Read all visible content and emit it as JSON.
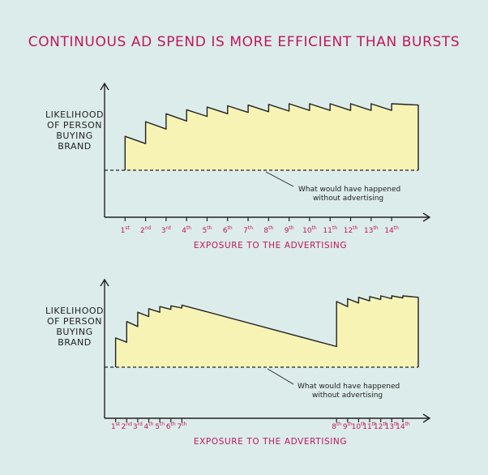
{
  "title": "CONTINUOUS AD SPEND IS MORE EFFICIENT THAN BURSTS",
  "colors": {
    "background": "#dcecea",
    "accent": "#c0175d",
    "fill": "#f6f3b5",
    "line": "#222222"
  },
  "chart_data": [
    {
      "type": "area",
      "ylabel": [
        "LIKELIHOOD",
        "OF PERSON",
        "BUYING",
        "BRAND"
      ],
      "xlabel": "EXPOSURE TO THE ADVERTISING",
      "baseline_note": [
        "What would have happened",
        "without advertising"
      ],
      "exposures": [
        {
          "num": "1",
          "suffix": "st"
        },
        {
          "num": "2",
          "suffix": "nd"
        },
        {
          "num": "3",
          "suffix": "rd"
        },
        {
          "num": "4",
          "suffix": "th"
        },
        {
          "num": "5",
          "suffix": "th"
        },
        {
          "num": "6",
          "suffix": "th"
        },
        {
          "num": "7",
          "suffix": "th"
        },
        {
          "num": "8",
          "suffix": "th"
        },
        {
          "num": "9",
          "suffix": "th"
        },
        {
          "num": "10",
          "suffix": "th"
        },
        {
          "num": "11",
          "suffix": "th"
        },
        {
          "num": "12",
          "suffix": "th"
        },
        {
          "num": "13",
          "suffix": "th"
        },
        {
          "num": "14",
          "suffix": "th"
        }
      ],
      "exposure_times": [
        1,
        2,
        3,
        4,
        5,
        6,
        7,
        8,
        9,
        10,
        11,
        12,
        13,
        14
      ],
      "peak_levels": [
        0.51,
        0.73,
        0.85,
        0.91,
        0.95,
        0.97,
        0.98,
        0.99,
        1.0,
        1.0,
        1.0,
        1.0,
        1.0,
        1.0
      ],
      "trough_levels": [
        0.4,
        0.62,
        0.74,
        0.81,
        0.85,
        0.87,
        0.88,
        0.89,
        0.9,
        0.9,
        0.9,
        0.9,
        0.9,
        0.9
      ],
      "end_level": 0.98,
      "x_range": [
        0,
        15.3
      ]
    },
    {
      "type": "area",
      "ylabel": [
        "LIKELIHOOD",
        "OF PERSON",
        "BUYING",
        "BRAND"
      ],
      "xlabel": "EXPOSURE TO THE ADVERTISING",
      "baseline_note": [
        "What would have happened",
        "without advertising"
      ],
      "exposures": [
        {
          "num": "1",
          "suffix": "st"
        },
        {
          "num": "2",
          "suffix": "nd"
        },
        {
          "num": "3",
          "suffix": "rd"
        },
        {
          "num": "4",
          "suffix": "th"
        },
        {
          "num": "5",
          "suffix": "th"
        },
        {
          "num": "6",
          "suffix": "th"
        },
        {
          "num": "7",
          "suffix": "th"
        },
        {
          "num": "8",
          "suffix": "th"
        },
        {
          "num": "9",
          "suffix": "th"
        },
        {
          "num": "10",
          "suffix": "th"
        },
        {
          "num": "11",
          "suffix": "th"
        },
        {
          "num": "12",
          "suffix": "th"
        },
        {
          "num": "13",
          "suffix": "th"
        },
        {
          "num": "14",
          "suffix": "th"
        }
      ],
      "exposure_times": [
        1,
        2,
        3,
        4,
        5,
        6,
        7,
        21,
        22,
        23,
        24,
        25,
        26,
        27
      ],
      "peak_levels": [
        0.41,
        0.64,
        0.77,
        0.82,
        0.85,
        0.86,
        0.87,
        0.92,
        0.96,
        0.98,
        0.99,
        1.0,
        1.0,
        1.0
      ],
      "trough_levels": [
        0.35,
        0.57,
        0.71,
        0.77,
        0.81,
        0.83,
        0.29,
        0.85,
        0.9,
        0.93,
        0.95,
        0.96,
        0.97,
        0.97
      ],
      "end_level": 0.98,
      "x_range": [
        0,
        28.4
      ]
    }
  ]
}
